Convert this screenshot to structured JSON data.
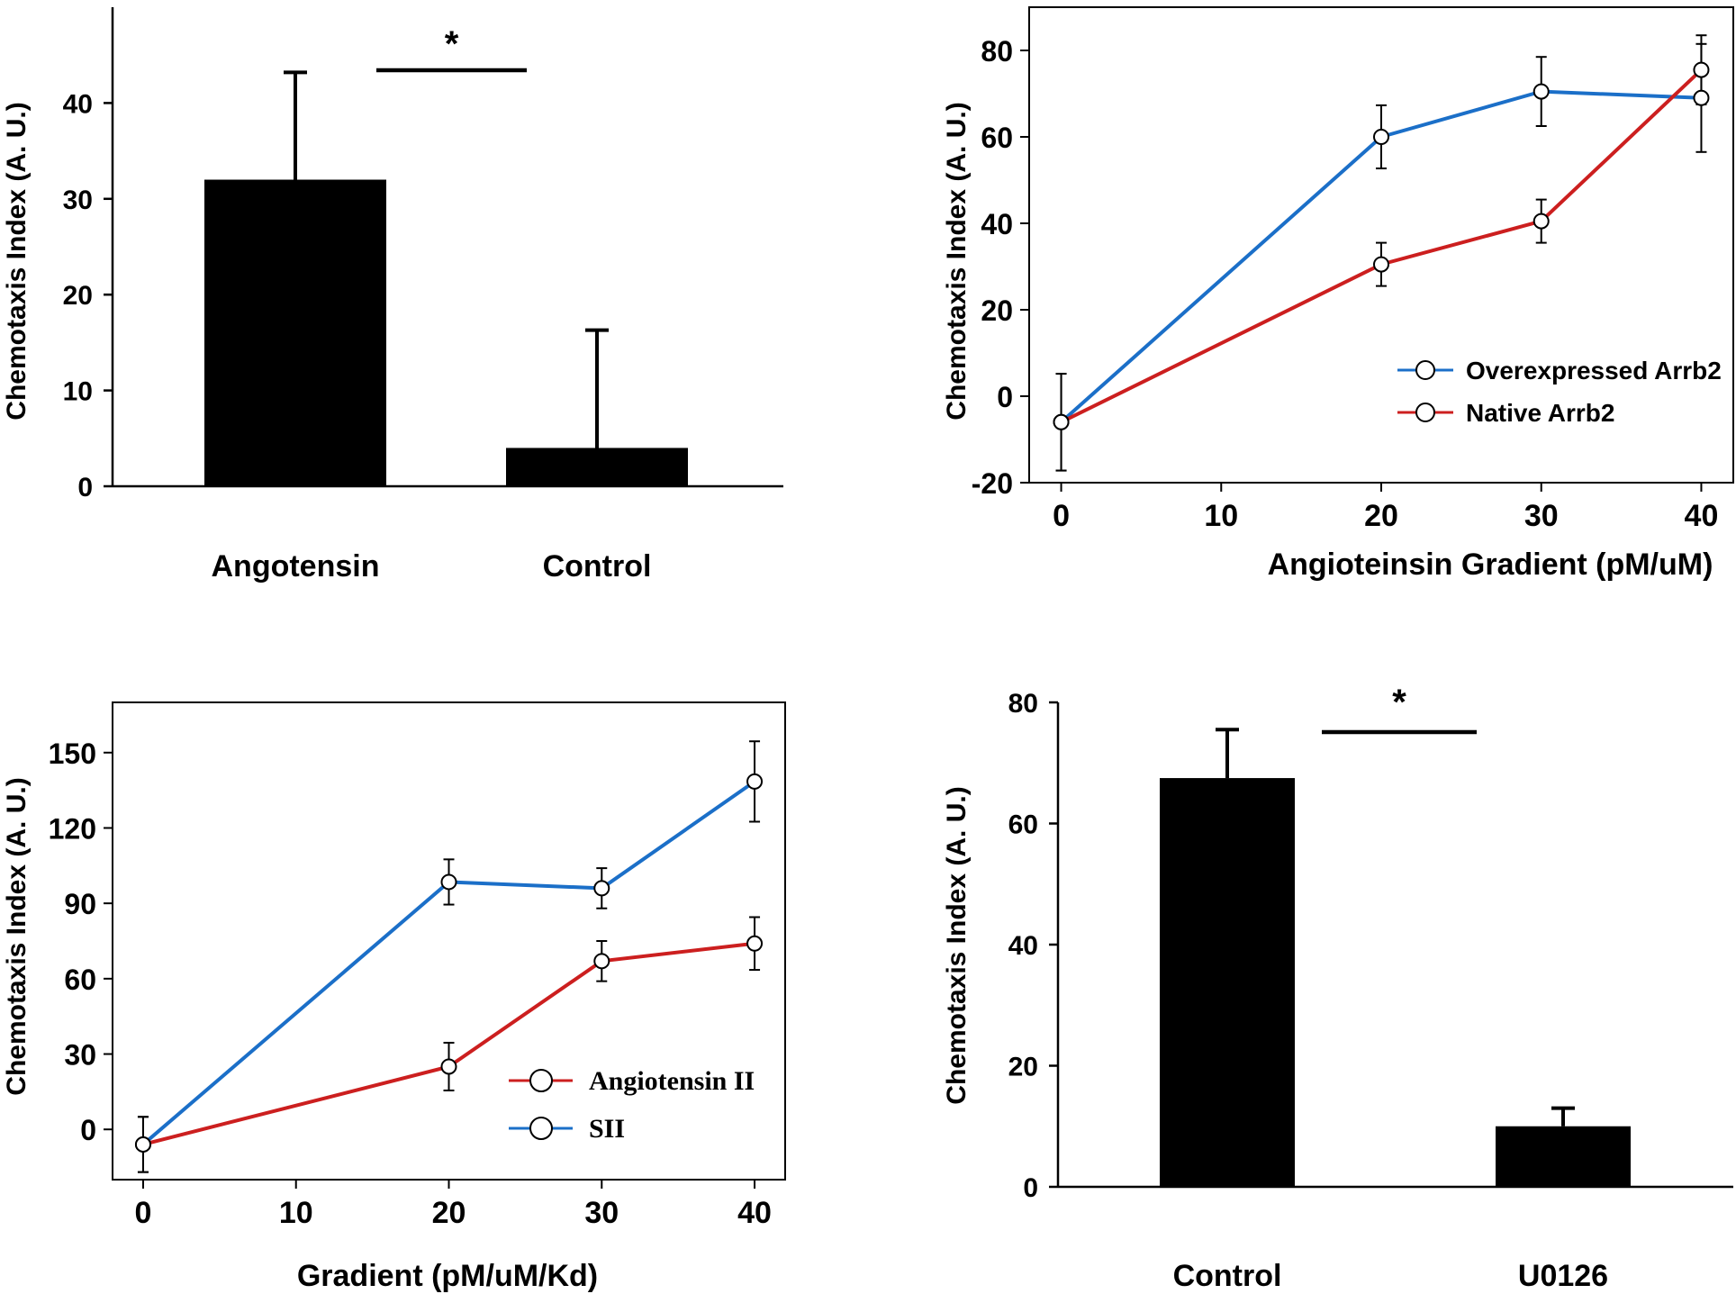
{
  "chart_data": [
    {
      "id": "A",
      "type": "bar",
      "ylabel": "Chemotaxis Index (A. U.)",
      "xlabel": "",
      "categories": [
        "Angotensin",
        "Control"
      ],
      "values": [
        32,
        4
      ],
      "errors": [
        11.2,
        12.3
      ],
      "ylim": [
        0,
        50
      ],
      "yticks": [
        0,
        10,
        20,
        30,
        40
      ],
      "significance": {
        "label": "*",
        "between": [
          "Angotensin",
          "Control"
        ]
      },
      "grid": false
    },
    {
      "id": "B",
      "type": "line",
      "ylabel": "Chemotaxis Index (A. U.)",
      "xlabel": "Angioteinsin Gradient (pM/uM)",
      "xlim": [
        -2,
        42
      ],
      "ylim": [
        -20,
        90
      ],
      "xticks": [
        0,
        10,
        20,
        30,
        40
      ],
      "yticks": [
        -20,
        0,
        20,
        40,
        60,
        80
      ],
      "legend_position": "lower-right",
      "series": [
        {
          "name": "Overexpressed Arrb2",
          "color": "#1b6fc8",
          "x": [
            0,
            20,
            30,
            40
          ],
          "y": [
            -6,
            60,
            70.5,
            69
          ],
          "err": [
            11.2,
            7.3,
            8,
            12.5
          ]
        },
        {
          "name": "Native Arrb2",
          "color": "#cc1f1f",
          "x": [
            0,
            20,
            30,
            40
          ],
          "y": [
            -6,
            30.5,
            40.5,
            75.5
          ],
          "err": [
            11.2,
            5,
            5,
            8
          ]
        }
      ],
      "grid": false
    },
    {
      "id": "C",
      "type": "line",
      "ylabel": "Chemotaxis Index (A. U.)",
      "xlabel": "Gradient (pM/uM/Kd)",
      "xlim": [
        -2,
        42
      ],
      "ylim": [
        -20,
        170
      ],
      "xticks": [
        0,
        10,
        20,
        30,
        40
      ],
      "yticks": [
        0,
        30,
        60,
        90,
        120,
        150
      ],
      "legend_position": "lower-right",
      "series": [
        {
          "name": "Angiotensin II",
          "color": "#cc1f1f",
          "x": [
            0,
            20,
            30,
            40
          ],
          "y": [
            -6,
            25,
            67,
            74
          ],
          "err": [
            11,
            9.5,
            8,
            10.5
          ]
        },
        {
          "name": "SII",
          "color": "#1b6fc8",
          "x": [
            0,
            20,
            30,
            40
          ],
          "y": [
            -6,
            98.5,
            96,
            138.5
          ],
          "err": [
            11,
            9,
            8,
            16
          ]
        }
      ],
      "grid": false
    },
    {
      "id": "D",
      "type": "bar",
      "ylabel": "Chemotaxis Index (A. U.)",
      "xlabel": "",
      "categories": [
        "Control",
        "U0126"
      ],
      "values": [
        67.5,
        10
      ],
      "errors": [
        8,
        3
      ],
      "ylim": [
        0,
        80
      ],
      "yticks": [
        0,
        20,
        40,
        60,
        80
      ],
      "significance": {
        "label": "*",
        "between": [
          "Control",
          "U0126"
        ]
      },
      "grid": false
    }
  ]
}
